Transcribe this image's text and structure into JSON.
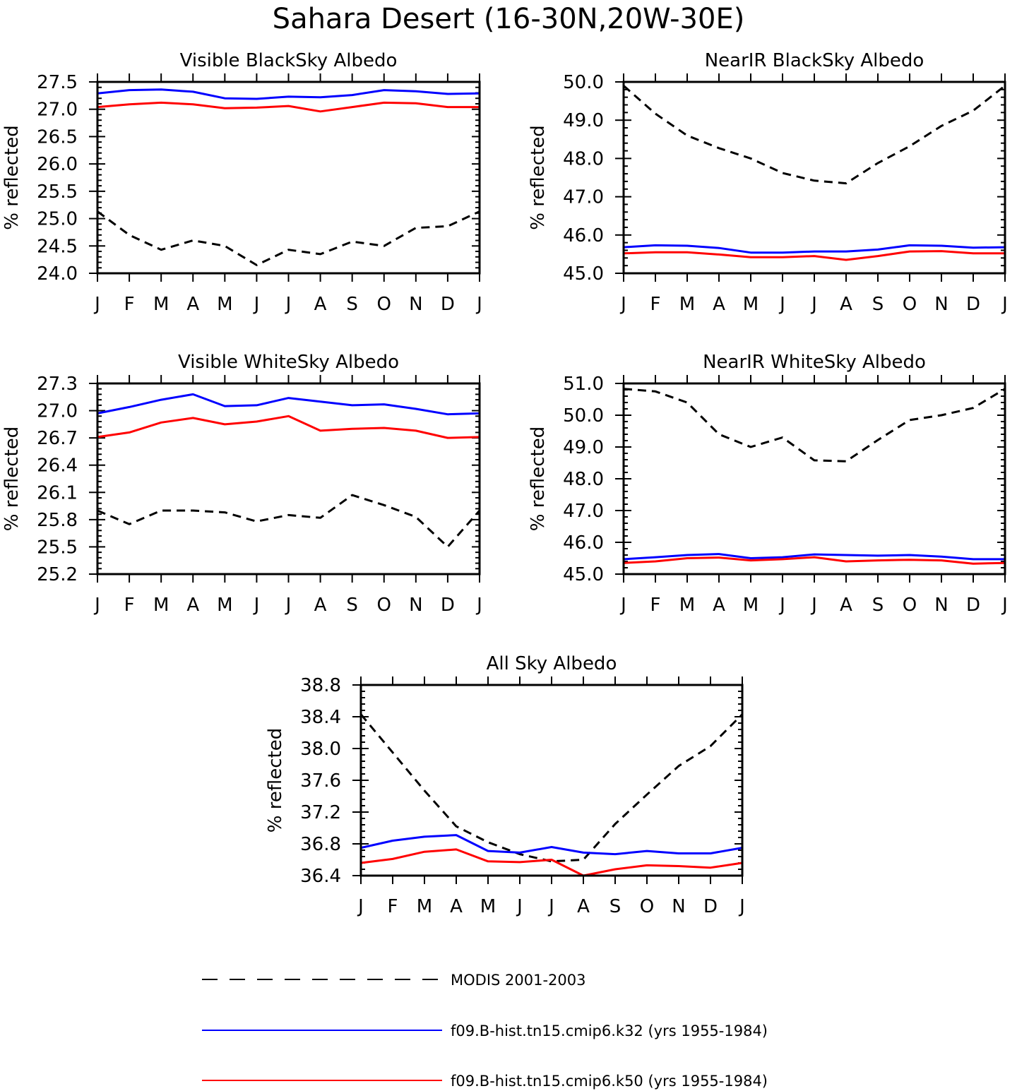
{
  "figure": {
    "title": "Sahara Desert (16-30N,20W-30E)"
  },
  "legend": [
    {
      "label": "MODIS 2001-2003",
      "color": "#000000",
      "dashed": true
    },
    {
      "label": "f09.B-hist.tn15.cmip6.k32 (yrs 1955-1984)",
      "color": "#0000ff",
      "dashed": false
    },
    {
      "label": "f09.B-hist.tn15.cmip6.k50 (yrs 1955-1984)",
      "color": "#ff0000",
      "dashed": false
    }
  ],
  "colors": {
    "modis": "#000000",
    "k32": "#0000ff",
    "k50": "#ff0000"
  },
  "chart_data": [
    {
      "type": "line",
      "title": "Visible BlackSky Albedo",
      "ylabel": "% reflected",
      "categories": [
        "J",
        "F",
        "M",
        "A",
        "M",
        "J",
        "J",
        "A",
        "S",
        "O",
        "N",
        "D",
        "J"
      ],
      "ylim": [
        24.0,
        27.5
      ],
      "yticks": [
        "24.0",
        "24.5",
        "25.0",
        "25.5",
        "26.0",
        "26.5",
        "27.0",
        "27.5"
      ],
      "series": [
        {
          "name": "MODIS 2001-2003",
          "values": [
            25.13,
            24.7,
            24.43,
            24.6,
            24.5,
            24.15,
            24.43,
            24.35,
            24.58,
            24.5,
            24.83,
            24.86,
            25.13
          ]
        },
        {
          "name": "f09.B-hist.tn15.cmip6.k32 (yrs 1955-1984)",
          "values": [
            27.29,
            27.35,
            27.36,
            27.32,
            27.2,
            27.19,
            27.23,
            27.22,
            27.26,
            27.35,
            27.33,
            27.28,
            27.29
          ]
        },
        {
          "name": "f09.B-hist.tn15.cmip6.k50 (yrs 1955-1984)",
          "values": [
            27.04,
            27.09,
            27.12,
            27.09,
            27.02,
            27.03,
            27.06,
            26.96,
            27.04,
            27.12,
            27.11,
            27.04,
            27.04
          ]
        }
      ]
    },
    {
      "type": "line",
      "title": "NearIR BlackSky Albedo",
      "ylabel": "% reflected",
      "categories": [
        "J",
        "F",
        "M",
        "A",
        "M",
        "J",
        "J",
        "A",
        "S",
        "O",
        "N",
        "D",
        "J"
      ],
      "ylim": [
        45.0,
        50.0
      ],
      "yticks": [
        "45.0",
        "46.0",
        "47.0",
        "48.0",
        "49.0",
        "50.0"
      ],
      "series": [
        {
          "name": "MODIS 2001-2003",
          "values": [
            49.9,
            49.17,
            48.6,
            48.27,
            48.0,
            47.62,
            47.42,
            47.35,
            47.88,
            48.32,
            48.85,
            49.25,
            49.9
          ]
        },
        {
          "name": "f09.B-hist.tn15.cmip6.k32 (yrs 1955-1984)",
          "values": [
            45.68,
            45.73,
            45.72,
            45.66,
            45.54,
            45.54,
            45.57,
            45.57,
            45.62,
            45.73,
            45.72,
            45.67,
            45.68
          ]
        },
        {
          "name": "f09.B-hist.tn15.cmip6.k50 (yrs 1955-1984)",
          "values": [
            45.52,
            45.55,
            45.55,
            45.49,
            45.42,
            45.42,
            45.45,
            45.35,
            45.45,
            45.57,
            45.58,
            45.52,
            45.52
          ]
        }
      ]
    },
    {
      "type": "line",
      "title": "Visible WhiteSky Albedo",
      "ylabel": "% reflected",
      "categories": [
        "J",
        "F",
        "M",
        "A",
        "M",
        "J",
        "J",
        "A",
        "S",
        "O",
        "N",
        "D",
        "J"
      ],
      "ylim": [
        25.2,
        27.3
      ],
      "yticks": [
        "25.2",
        "25.5",
        "25.8",
        "26.1",
        "26.4",
        "26.7",
        "27.0",
        "27.3"
      ],
      "series": [
        {
          "name": "MODIS 2001-2003",
          "values": [
            25.9,
            25.75,
            25.9,
            25.9,
            25.88,
            25.78,
            25.85,
            25.82,
            26.07,
            25.96,
            25.83,
            25.5,
            25.9
          ]
        },
        {
          "name": "f09.B-hist.tn15.cmip6.k32 (yrs 1955-1984)",
          "values": [
            26.97,
            27.04,
            27.12,
            27.18,
            27.05,
            27.06,
            27.14,
            27.1,
            27.06,
            27.07,
            27.02,
            26.96,
            26.97
          ]
        },
        {
          "name": "f09.B-hist.tn15.cmip6.k50 (yrs 1955-1984)",
          "values": [
            26.71,
            26.76,
            26.87,
            26.92,
            26.85,
            26.88,
            26.94,
            26.78,
            26.8,
            26.81,
            26.78,
            26.7,
            26.71
          ]
        }
      ]
    },
    {
      "type": "line",
      "title": "NearIR WhiteSky Albedo",
      "ylabel": "% reflected",
      "categories": [
        "J",
        "F",
        "M",
        "A",
        "M",
        "J",
        "J",
        "A",
        "S",
        "O",
        "N",
        "D",
        "J"
      ],
      "ylim": [
        45.0,
        51.0
      ],
      "yticks": [
        "45.0",
        "46.0",
        "47.0",
        "48.0",
        "49.0",
        "50.0",
        "51.0"
      ],
      "series": [
        {
          "name": "MODIS 2001-2003",
          "values": [
            50.83,
            50.75,
            50.4,
            49.4,
            49.0,
            49.3,
            48.58,
            48.55,
            49.22,
            49.85,
            50.0,
            50.23,
            50.83
          ]
        },
        {
          "name": "f09.B-hist.tn15.cmip6.k32 (yrs 1955-1984)",
          "values": [
            45.47,
            45.53,
            45.6,
            45.63,
            45.5,
            45.53,
            45.62,
            45.6,
            45.58,
            45.6,
            45.55,
            45.47,
            45.47
          ]
        },
        {
          "name": "f09.B-hist.tn15.cmip6.k50 (yrs 1955-1984)",
          "values": [
            45.35,
            45.4,
            45.5,
            45.52,
            45.43,
            45.47,
            45.53,
            45.4,
            45.43,
            45.45,
            45.43,
            45.33,
            45.35
          ]
        }
      ]
    },
    {
      "type": "line",
      "title": "All Sky Albedo",
      "ylabel": "% reflected",
      "categories": [
        "J",
        "F",
        "M",
        "A",
        "M",
        "J",
        "J",
        "A",
        "S",
        "O",
        "N",
        "D",
        "J"
      ],
      "ylim": [
        36.4,
        38.8
      ],
      "yticks": [
        "36.4",
        "36.8",
        "37.2",
        "37.6",
        "38.0",
        "38.4",
        "38.8"
      ],
      "series": [
        {
          "name": "MODIS 2001-2003",
          "values": [
            38.43,
            37.95,
            37.47,
            37.02,
            36.82,
            36.67,
            36.58,
            36.6,
            37.05,
            37.42,
            37.78,
            38.03,
            38.43
          ]
        },
        {
          "name": "f09.B-hist.tn15.cmip6.k32 (yrs 1955-1984)",
          "values": [
            36.75,
            36.84,
            36.89,
            36.91,
            36.71,
            36.69,
            36.76,
            36.69,
            36.67,
            36.71,
            36.68,
            36.68,
            36.75
          ]
        },
        {
          "name": "f09.B-hist.tn15.cmip6.k50 (yrs 1955-1984)",
          "values": [
            36.56,
            36.61,
            36.7,
            36.73,
            36.58,
            36.57,
            36.6,
            36.4,
            36.48,
            36.53,
            36.52,
            36.5,
            36.56
          ]
        }
      ]
    }
  ]
}
